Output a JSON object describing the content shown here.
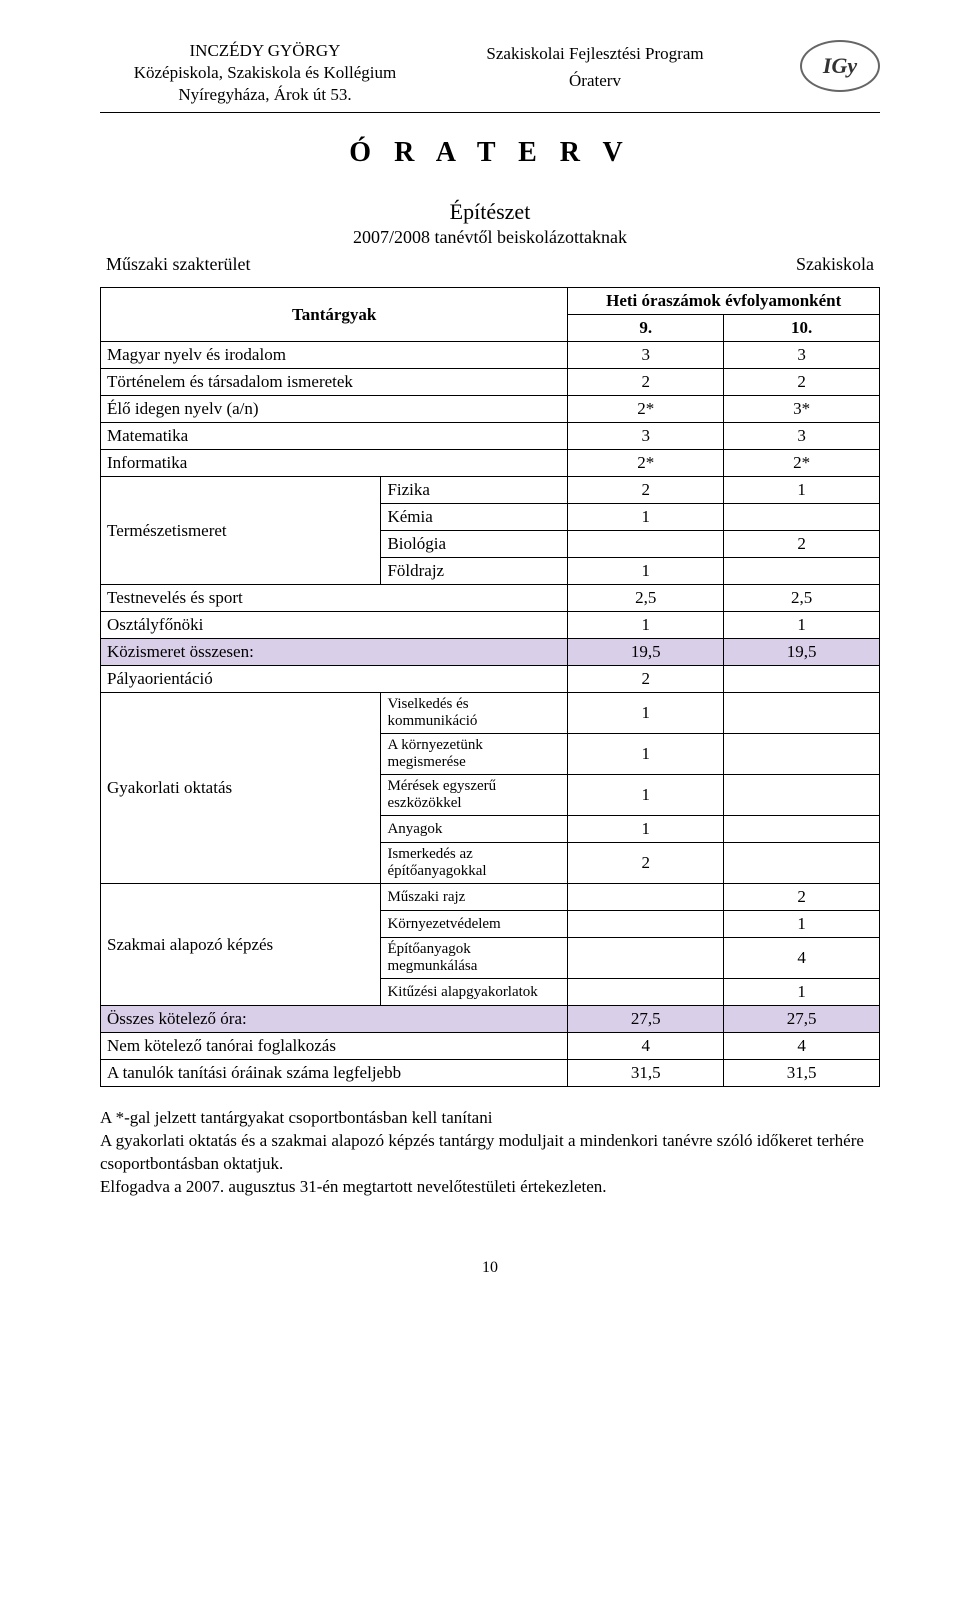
{
  "header": {
    "school_name_1": "INCZÉDY GYÖRGY",
    "school_name_2": "Középiskola, Szakiskola és Kollégium",
    "school_name_3": "Nyíregyháza, Árok út 53.",
    "program_line_1": "Szakiskolai Fejlesztési Program",
    "program_line_2": "Óraterv"
  },
  "title": "Ó R A T E R V",
  "subtitle": "Építészet",
  "subline": "2007/2008 tanévtől beiskolázottaknak",
  "meta_left": "Műszaki szakterület",
  "meta_right": "Szakiskola",
  "table": {
    "head_subjects": "Tantárgyak",
    "head_weekly": "Heti óraszámok évfolyamonként",
    "grade9": "9.",
    "grade10": "10.",
    "rows_top": [
      {
        "label": "Magyar nyelv és irodalom",
        "g9": "3",
        "g10": "3"
      },
      {
        "label": "Történelem és társadalom ismeretek",
        "g9": "2",
        "g10": "2"
      },
      {
        "label": "Élő idegen nyelv (a/n)",
        "g9": "2*",
        "g10": "3*"
      },
      {
        "label": "Matematika",
        "g9": "3",
        "g10": "3"
      },
      {
        "label": "Informatika",
        "g9": "2*",
        "g10": "2*"
      }
    ],
    "nat_science_label": "Természetismeret",
    "nat_science": [
      {
        "sub": "Fizika",
        "g9": "2",
        "g10": "1"
      },
      {
        "sub": "Kémia",
        "g9": "1",
        "g10": ""
      },
      {
        "sub": "Biológia",
        "g9": "",
        "g10": "2"
      },
      {
        "sub": "Földrajz",
        "g9": "1",
        "g10": ""
      }
    ],
    "rows_mid": [
      {
        "label": "Testnevelés és sport",
        "g9": "2,5",
        "g10": "2,5"
      },
      {
        "label": "Osztályfőnöki",
        "g9": "1",
        "g10": "1"
      }
    ],
    "common_total": {
      "label": "Közismeret összesen:",
      "g9": "19,5",
      "g10": "19,5"
    },
    "orientation": {
      "label": "Pályaorientáció",
      "g9": "2",
      "g10": ""
    },
    "practical_label": "Gyakorlati oktatás",
    "practical": [
      {
        "sub": "Viselkedés és kommunikáció",
        "g9": "1",
        "g10": ""
      },
      {
        "sub": "A környezetünk megismerése",
        "g9": "1",
        "g10": ""
      },
      {
        "sub": "Mérések egyszerű eszközökkel",
        "g9": "1",
        "g10": ""
      },
      {
        "sub": "Anyagok",
        "g9": "1",
        "g10": ""
      },
      {
        "sub": "Ismerkedés az építőanyagokkal",
        "g9": "2",
        "g10": ""
      }
    ],
    "vocational_label": "Szakmai alapozó képzés",
    "vocational": [
      {
        "sub": "Műszaki rajz",
        "g9": "",
        "g10": "2"
      },
      {
        "sub": "Környezetvédelem",
        "g9": "",
        "g10": "1"
      },
      {
        "sub": "Építőanyagok megmunkálása",
        "g9": "",
        "g10": "4"
      },
      {
        "sub": "Kitűzési alapgyakorlatok",
        "g9": "",
        "g10": "1"
      }
    ],
    "total_mandatory": {
      "label": "Összes kötelező óra:",
      "g9": "27,5",
      "g10": "27,5"
    },
    "non_mandatory": {
      "label": "Nem kötelező tanórai foglalkozás",
      "g9": "4",
      "g10": "4"
    },
    "max_hours": {
      "label": "A tanulók tanítási óráinak száma legfeljebb",
      "g9": "31,5",
      "g10": "31,5"
    }
  },
  "notes": [
    "A *-gal jelzett tantárgyakat csoportbontásban kell tanítani",
    "A gyakorlati oktatás és a szakmai alapozó képzés tantárgy moduljait a mindenkori tanévre szóló időkeret terhére csoportbontásban oktatjuk.",
    "Elfogadva a 2007. augusztus 31-én megtartott nevelőtestületi értekezleten."
  ],
  "page_number": "10",
  "colors": {
    "highlight": "#d9cfe8",
    "text": "#000000",
    "bg": "#ffffff"
  }
}
